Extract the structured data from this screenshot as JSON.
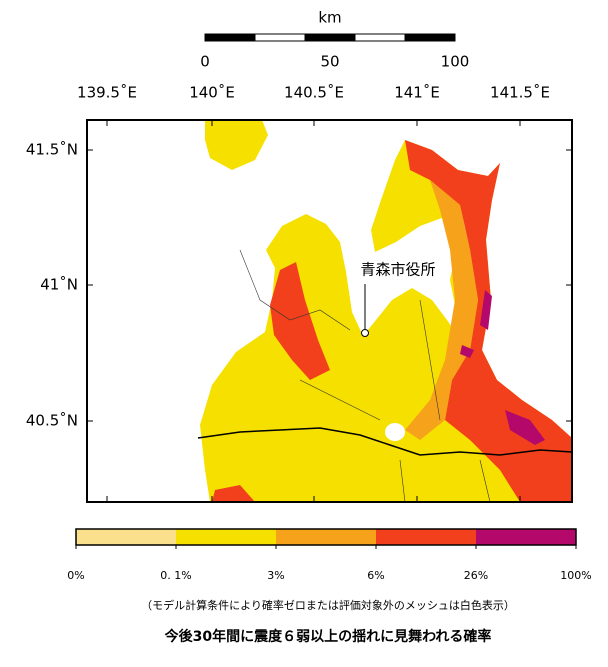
{
  "scale_bar": {
    "unit": "km",
    "ticks": [
      "0",
      "50",
      "100"
    ]
  },
  "longitude_labels": [
    "139.5˚E",
    "140˚E",
    "140.5˚E",
    "141˚E",
    "141.5˚E"
  ],
  "latitude_labels": [
    "41.5˚N",
    "41˚N",
    "40.5˚N"
  ],
  "place_label": "青森市役所",
  "legend": {
    "colors": [
      "#fadf8c",
      "#f6e000",
      "#f7a21b",
      "#f2401c",
      "#b4086a"
    ],
    "labels": [
      "0%",
      "0. 1%",
      "3%",
      "6%",
      "26%",
      "100%"
    ]
  },
  "note": "（モデル計算条件により確率ゼロまたは評価対象外のメッシュは白色表示）",
  "title": "今後30年間に震度６弱以上の揺れに見舞われる確率"
}
